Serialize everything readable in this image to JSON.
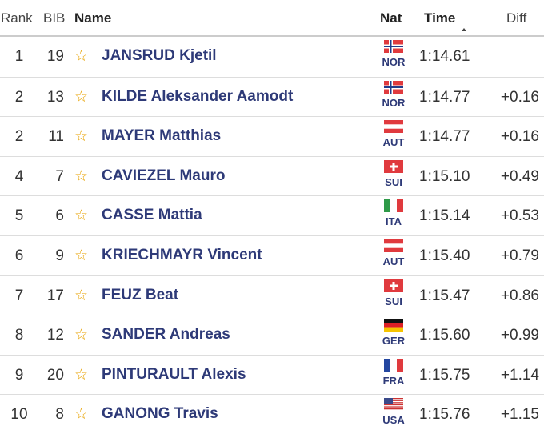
{
  "header": {
    "columns": [
      "Rank",
      "BIB",
      "Name",
      "Nat",
      "Time",
      "Diff"
    ]
  },
  "table": {
    "rows": [
      [
        1,
        19,
        "JANSRUD Kjetil",
        "NOR",
        "1:14.61",
        null
      ],
      [
        2,
        13,
        "KILDE Aleksander Aamodt",
        "NOR",
        "1:14.77",
        "+0.16"
      ],
      [
        2,
        11,
        "MAYER Matthias",
        "AUT",
        "1:14.77",
        "+0.16"
      ],
      [
        4,
        7,
        "CAVIEZEL Mauro",
        "SUI",
        "1:15.10",
        "+0.49"
      ],
      [
        5,
        6,
        "CASSE Mattia",
        "ITA",
        "1:15.14",
        "+0.53"
      ],
      [
        6,
        9,
        "KRIECHMAYR Vincent",
        "AUT",
        "1:15.40",
        "+0.79"
      ],
      [
        7,
        17,
        "FEUZ Beat",
        "SUI",
        "1:15.47",
        "+0.86"
      ],
      [
        8,
        12,
        "SANDER Andreas",
        "GER",
        "1:15.60",
        "+0.99"
      ],
      [
        9,
        20,
        "PINTURAULT Alexis",
        "FRA",
        "1:15.75",
        "+1.14"
      ],
      [
        10,
        8,
        "GANONG Travis",
        "USA",
        "1:15.76",
        "+1.15"
      ]
    ]
  }
}
